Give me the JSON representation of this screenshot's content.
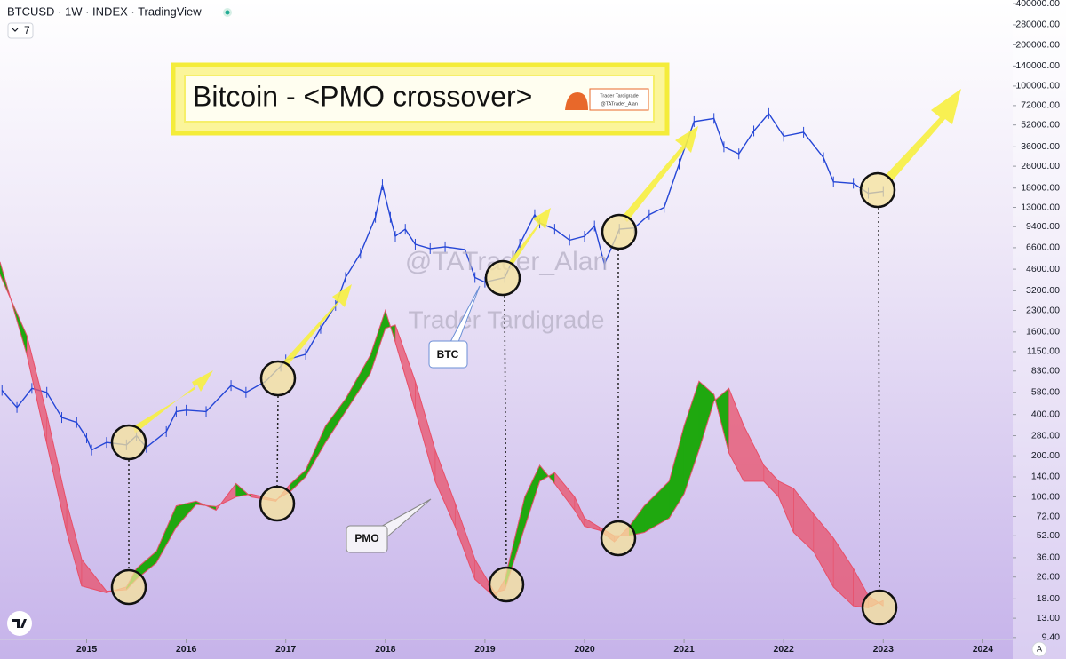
{
  "header": "BTCUSD · 1W · INDEX · TradingView",
  "interval_button": "7",
  "scale_button": "A",
  "watermarks": [
    "@TATrader_Alan",
    "Trader Tardigrade"
  ],
  "logo_text": [
    "Trader Tardigrade",
    "@TATrader_Alan"
  ],
  "chart_data": {
    "type": "line",
    "title": "Bitcoin - <PMO crossover>",
    "log_scale": true,
    "xlim": [
      2014.13,
      2024.3
    ],
    "xticks": [
      2015,
      2016,
      2017,
      2018,
      2019,
      2020,
      2021,
      2022,
      2023,
      2024
    ],
    "ylim": [
      9.1,
      425000
    ],
    "yticks": [
      {
        "value": 400000,
        "label": "400000.00"
      },
      {
        "value": 280000,
        "label": "280000.00"
      },
      {
        "value": 200000,
        "label": "200000.00"
      },
      {
        "value": 140000,
        "label": "140000.00"
      },
      {
        "value": 100000,
        "label": "100000.00"
      },
      {
        "value": 72000,
        "label": "72000.00"
      },
      {
        "value": 52000,
        "label": "52000.00"
      },
      {
        "value": 36000,
        "label": "36000.00"
      },
      {
        "value": 26000,
        "label": "26000.00"
      },
      {
        "value": 18000,
        "label": "18000.00"
      },
      {
        "value": 13000,
        "label": "13000.00"
      },
      {
        "value": 9400,
        "label": "9400.00"
      },
      {
        "value": 6600,
        "label": "6600.00"
      },
      {
        "value": 4600,
        "label": "4600.00"
      },
      {
        "value": 3200,
        "label": "3200.00"
      },
      {
        "value": 2300,
        "label": "2300.00"
      },
      {
        "value": 1600,
        "label": "1600.00"
      },
      {
        "value": 1150,
        "label": "1150.00"
      },
      {
        "value": 830,
        "label": "830.00"
      },
      {
        "value": 580,
        "label": "580.00"
      },
      {
        "value": 400,
        "label": "400.00"
      },
      {
        "value": 280,
        "label": "280.00"
      },
      {
        "value": 200,
        "label": "200.00"
      },
      {
        "value": 140,
        "label": "140.00"
      },
      {
        "value": 100,
        "label": "100.00"
      },
      {
        "value": 72,
        "label": "72.00"
      },
      {
        "value": 52,
        "label": "52.00"
      },
      {
        "value": 36,
        "label": "36.00"
      },
      {
        "value": 26,
        "label": "26.00"
      },
      {
        "value": 18,
        "label": "18.00"
      },
      {
        "value": 13,
        "label": "13.00"
      },
      {
        "value": 9.4,
        "label": "9.40"
      }
    ],
    "up_color": "#1fa80f",
    "down_color": "#e8506a",
    "series": [
      {
        "name": "BTC",
        "color": "#2546d6",
        "x": [
          2014.15,
          2014.3,
          2014.45,
          2014.6,
          2014.75,
          2014.9,
          2015.0,
          2015.05,
          2015.2,
          2015.4,
          2015.5,
          2015.6,
          2015.8,
          2015.9,
          2016.0,
          2016.2,
          2016.45,
          2016.6,
          2016.8,
          2016.95,
          2017.0,
          2017.2,
          2017.35,
          2017.5,
          2017.6,
          2017.75,
          2017.9,
          2017.97,
          2018.05,
          2018.1,
          2018.2,
          2018.3,
          2018.45,
          2018.6,
          2018.8,
          2018.9,
          2019.0,
          2019.2,
          2019.35,
          2019.5,
          2019.55,
          2019.7,
          2019.85,
          2020.0,
          2020.1,
          2020.2,
          2020.35,
          2020.5,
          2020.65,
          2020.8,
          2020.95,
          2021.1,
          2021.3,
          2021.4,
          2021.55,
          2021.7,
          2021.85,
          2022.0,
          2022.2,
          2022.4,
          2022.5,
          2022.7,
          2022.85,
          2023.0
        ],
        "values": [
          600,
          450,
          620,
          580,
          380,
          350,
          270,
          220,
          250,
          240,
          280,
          230,
          300,
          420,
          430,
          420,
          650,
          580,
          700,
          900,
          1000,
          1100,
          1700,
          2500,
          4000,
          6000,
          11000,
          19000,
          11000,
          8000,
          9000,
          7000,
          6500,
          6700,
          6400,
          4000,
          3700,
          4000,
          7000,
          11500,
          10000,
          9000,
          7500,
          8000,
          9500,
          5000,
          9000,
          9200,
          11500,
          13000,
          27000,
          55000,
          58000,
          36000,
          32000,
          47000,
          63000,
          43000,
          46000,
          30000,
          20000,
          19500,
          16500,
          17000
        ]
      },
      {
        "name": "PMO",
        "x": [
          2014.13,
          2014.4,
          2014.6,
          2014.8,
          2014.95,
          2015.2,
          2015.4,
          2015.5,
          2015.7,
          2015.9,
          2016.1,
          2016.3,
          2016.5,
          2016.65,
          2016.9,
          2017.05,
          2017.2,
          2017.4,
          2017.6,
          2017.85,
          2018.0,
          2018.1,
          2018.3,
          2018.5,
          2018.7,
          2018.9,
          2019.1,
          2019.2,
          2019.4,
          2019.55,
          2019.7,
          2019.9,
          2020.0,
          2020.15,
          2020.3,
          2020.45,
          2020.6,
          2020.85,
          2021.0,
          2021.15,
          2021.3,
          2021.45,
          2021.6,
          2021.8,
          2021.95,
          2022.1,
          2022.3,
          2022.5,
          2022.7,
          2022.85,
          2023.0
        ],
        "values": [
          5200,
          1085,
          244,
          55,
          22.4,
          20,
          22,
          30,
          40,
          86,
          93,
          80,
          125,
          100,
          93,
          125,
          157,
          330,
          520,
          1085,
          2300,
          1350,
          430,
          130,
          61,
          25,
          18.5,
          25,
          100,
          170,
          125,
          80,
          61,
          57,
          47,
          61,
          86,
          130,
          330,
          700,
          560,
          210,
          130,
          130,
          100,
          55,
          40,
          22,
          16,
          15.5,
          17.5
        ],
        "signal": [
          4200,
          1500,
          400,
          90,
          35,
          20.5,
          21,
          25,
          33,
          60,
          88,
          85,
          100,
          105,
          95,
          110,
          140,
          250,
          420,
          800,
          1700,
          1800,
          700,
          220,
          90,
          35,
          20,
          21,
          60,
          130,
          150,
          100,
          70,
          60,
          52,
          52,
          55,
          70,
          105,
          220,
          500,
          620,
          330,
          170,
          130,
          115,
          75,
          50,
          30,
          19,
          16
        ]
      }
    ],
    "annotations": [
      "BTC",
      "PMO"
    ]
  }
}
